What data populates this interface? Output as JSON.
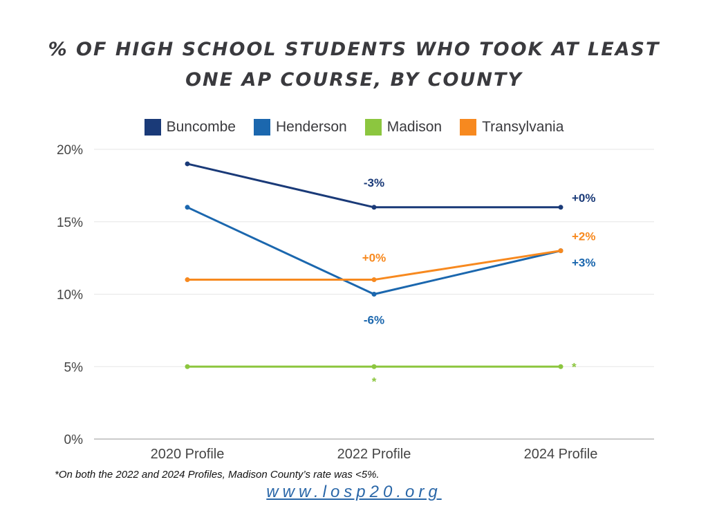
{
  "title_line1": "% OF HIGH SCHOOL STUDENTS WHO TOOK AT LEAST",
  "title_line2": "ONE AP COURSE, BY COUNTY",
  "footnote": "*On both the 2022 and 2024 Profiles, Madison County’s rate was <5%.",
  "site_link": "www.losp20.org",
  "chart_data": {
    "type": "line",
    "title": "% OF HIGH SCHOOL STUDENTS WHO TOOK AT LEAST ONE AP COURSE, BY COUNTY",
    "categories": [
      "2020 Profile",
      "2022 Profile",
      "2024 Profile"
    ],
    "ylim": [
      0,
      20
    ],
    "yticks": [
      0,
      5,
      10,
      15,
      20
    ],
    "ytick_labels": [
      "0%",
      "5%",
      "10%",
      "15%",
      "20%"
    ],
    "grid": true,
    "legend_position": "top",
    "series": [
      {
        "name": "Buncombe",
        "color": "#1a3a78",
        "values": [
          19,
          16,
          16
        ],
        "annotations": [
          "",
          "-3%",
          "+0%"
        ]
      },
      {
        "name": "Henderson",
        "color": "#1b67ae",
        "values": [
          16,
          10,
          13
        ],
        "annotations": [
          "",
          "-6%",
          "+3%"
        ]
      },
      {
        "name": "Madison",
        "color": "#8cc63f",
        "values": [
          5,
          5,
          5
        ],
        "annotations": [
          "",
          "*",
          "*"
        ]
      },
      {
        "name": "Transylvania",
        "color": "#f7891f",
        "values": [
          11,
          11,
          13
        ],
        "annotations": [
          "",
          "+0%",
          "+2%"
        ]
      }
    ]
  }
}
